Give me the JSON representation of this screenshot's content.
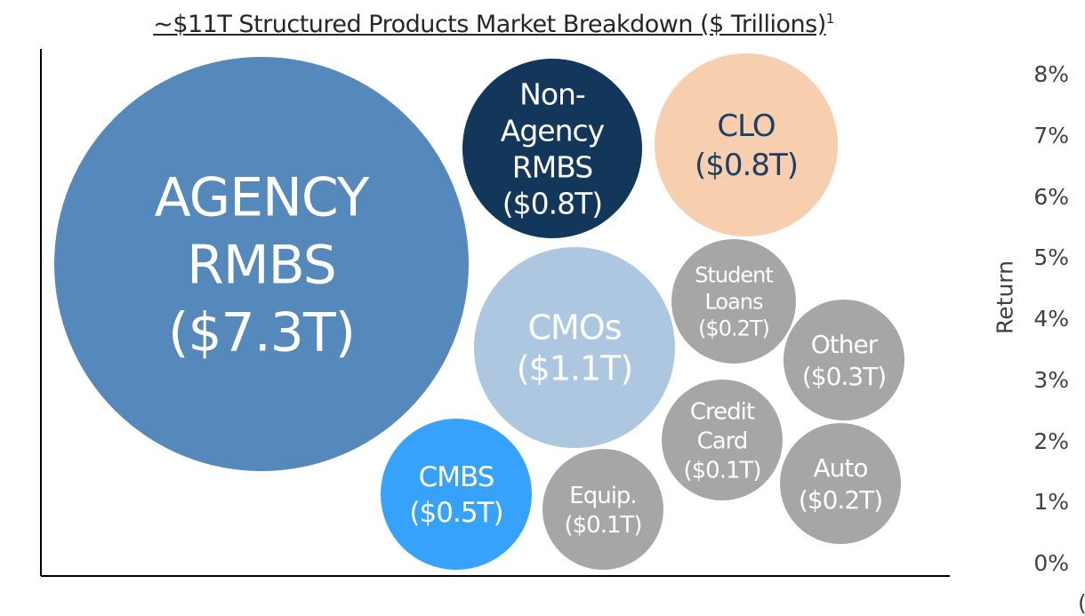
{
  "chart_data": {
    "type": "bubble",
    "title": "~$11T Structured Products Market Breakdown ($ Trillions)",
    "title_footnote": "1",
    "ylabel": "Return",
    "yticks": [
      "0%",
      "1%",
      "2%",
      "3%",
      "4%",
      "5%",
      "6%",
      "7%",
      "8%"
    ],
    "ylim": [
      0,
      8
    ],
    "y_axis_side": "right",
    "grid": false,
    "trailing_text": "(",
    "bubbles": [
      {
        "name": "agency",
        "lines": [
          "AGENCY",
          "RMBS",
          "($7.3T)"
        ],
        "value": 7.3,
        "color": "#5588bb",
        "text_color": "#ffffff"
      },
      {
        "name": "non-agency",
        "lines": [
          "Non-",
          "Agency",
          "RMBS",
          "($0.8T)"
        ],
        "value": 0.8,
        "color": "#13375a",
        "text_color": "#ffffff"
      },
      {
        "name": "clo",
        "lines": [
          "CLO",
          "($0.8T)"
        ],
        "value": 0.8,
        "color": "#f8cfae",
        "text_color": "#1c3f63"
      },
      {
        "name": "cmos",
        "lines": [
          "CMOs",
          "($1.1T)"
        ],
        "value": 1.1,
        "color": "#adc7e1",
        "text_color": "#ffffff"
      },
      {
        "name": "student-loans",
        "lines": [
          "Student",
          "Loans",
          "($0.2T)"
        ],
        "value": 0.2,
        "color": "#a6a6a6",
        "text_color": "#ffffff"
      },
      {
        "name": "other",
        "lines": [
          "Other",
          "($0.3T)"
        ],
        "value": 0.3,
        "color": "#a6a6a6",
        "text_color": "#ffffff"
      },
      {
        "name": "credit-card",
        "lines": [
          "Credit",
          "Card",
          "($0.1T)"
        ],
        "value": 0.1,
        "color": "#a6a6a6",
        "text_color": "#ffffff"
      },
      {
        "name": "auto",
        "lines": [
          "Auto",
          "($0.2T)"
        ],
        "value": 0.2,
        "color": "#a6a6a6",
        "text_color": "#ffffff"
      },
      {
        "name": "cmbs",
        "lines": [
          "CMBS",
          "($0.5T)"
        ],
        "value": 0.5,
        "color": "#36a2fb",
        "text_color": "#ffffff"
      },
      {
        "name": "equip",
        "lines": [
          "Equip.",
          "($0.1T)"
        ],
        "value": 0.1,
        "color": "#a6a6a6",
        "text_color": "#ffffff"
      }
    ]
  }
}
